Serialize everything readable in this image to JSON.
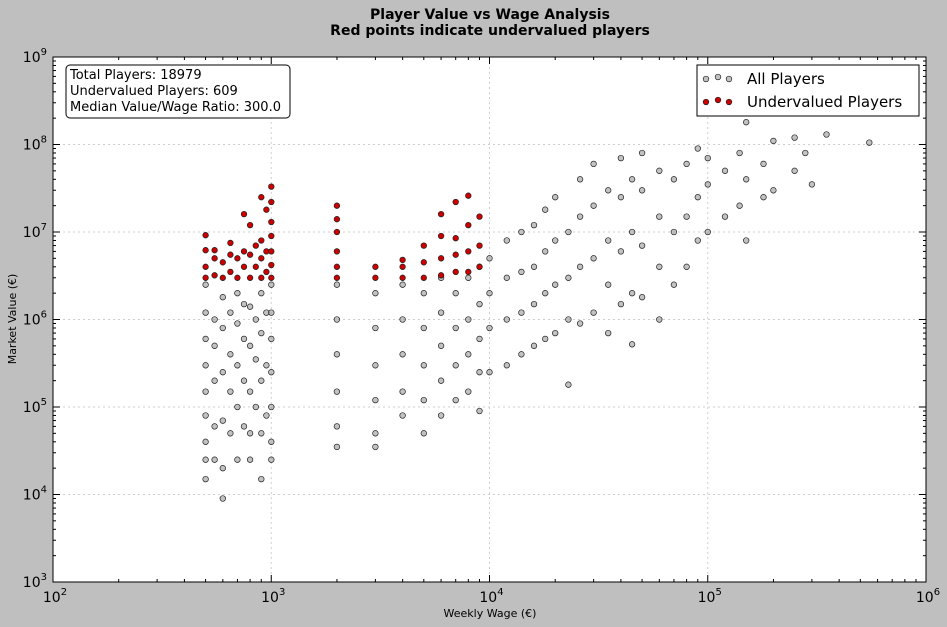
{
  "chart_data": {
    "type": "scatter",
    "title": "Player Value vs Wage Analysis",
    "subtitle": "Red points indicate undervalued players",
    "xlabel": "Weekly Wage (€)",
    "ylabel": "Market Value (€)",
    "x_scale": "log",
    "y_scale": "log",
    "xlim": [
      100,
      1000000
    ],
    "ylim": [
      1000,
      1000000000
    ],
    "x_ticks": [
      {
        "base": "10",
        "exp": "2",
        "value": 100
      },
      {
        "base": "10",
        "exp": "3",
        "value": 1000
      },
      {
        "base": "10",
        "exp": "4",
        "value": 10000
      },
      {
        "base": "10",
        "exp": "5",
        "value": 100000
      },
      {
        "base": "10",
        "exp": "6",
        "value": 1000000
      }
    ],
    "y_ticks": [
      {
        "base": "10",
        "exp": "3",
        "value": 1000
      },
      {
        "base": "10",
        "exp": "4",
        "value": 10000
      },
      {
        "base": "10",
        "exp": "5",
        "value": 100000
      },
      {
        "base": "10",
        "exp": "6",
        "value": 1000000
      },
      {
        "base": "10",
        "exp": "7",
        "value": 10000000
      },
      {
        "base": "10",
        "exp": "8",
        "value": 100000000
      },
      {
        "base": "10",
        "exp": "9",
        "value": 1000000000
      }
    ],
    "grid": true,
    "legend_position": "top-right",
    "stats": {
      "total": "Total Players: 18979",
      "undervalued": "Undervalued Players: 609",
      "median": "Median Value/Wage Ratio: 300.0"
    },
    "series": [
      {
        "name": "All Players",
        "color": "#999999",
        "points": [
          [
            500,
            15000
          ],
          [
            500,
            25000
          ],
          [
            500,
            40000
          ],
          [
            500,
            80000
          ],
          [
            500,
            150000
          ],
          [
            500,
            300000
          ],
          [
            500,
            600000
          ],
          [
            500,
            1200000
          ],
          [
            500,
            2500000
          ],
          [
            550,
            25000
          ],
          [
            550,
            60000
          ],
          [
            550,
            200000
          ],
          [
            550,
            500000
          ],
          [
            550,
            1000000
          ],
          [
            600,
            9000
          ],
          [
            600,
            20000
          ],
          [
            600,
            70000
          ],
          [
            600,
            250000
          ],
          [
            600,
            800000
          ],
          [
            600,
            1800000
          ],
          [
            650,
            50000
          ],
          [
            650,
            150000
          ],
          [
            650,
            400000
          ],
          [
            650,
            1200000
          ],
          [
            700,
            25000
          ],
          [
            700,
            100000
          ],
          [
            700,
            300000
          ],
          [
            700,
            900000
          ],
          [
            700,
            2000000
          ],
          [
            750,
            60000
          ],
          [
            750,
            200000
          ],
          [
            750,
            600000
          ],
          [
            750,
            1500000
          ],
          [
            800,
            25000
          ],
          [
            800,
            50000
          ],
          [
            800,
            150000
          ],
          [
            800,
            500000
          ],
          [
            800,
            1400000
          ],
          [
            850,
            100000
          ],
          [
            850,
            350000
          ],
          [
            850,
            1000000
          ],
          [
            900,
            15000
          ],
          [
            900,
            50000
          ],
          [
            900,
            200000
          ],
          [
            900,
            700000
          ],
          [
            900,
            2000000
          ],
          [
            950,
            80000
          ],
          [
            950,
            300000
          ],
          [
            950,
            1200000
          ],
          [
            1000,
            25000
          ],
          [
            1000,
            40000
          ],
          [
            1000,
            100000
          ],
          [
            1000,
            250000
          ],
          [
            1000,
            600000
          ],
          [
            1000,
            1200000
          ],
          [
            1000,
            2500000
          ],
          [
            2000,
            35000
          ],
          [
            2000,
            60000
          ],
          [
            2000,
            150000
          ],
          [
            2000,
            400000
          ],
          [
            2000,
            1000000
          ],
          [
            2000,
            2500000
          ],
          [
            3000,
            35000
          ],
          [
            3000,
            50000
          ],
          [
            3000,
            120000
          ],
          [
            3000,
            300000
          ],
          [
            3000,
            800000
          ],
          [
            3000,
            2000000
          ],
          [
            4000,
            80000
          ],
          [
            4000,
            150000
          ],
          [
            4000,
            400000
          ],
          [
            4000,
            1000000
          ],
          [
            4000,
            2500000
          ],
          [
            5000,
            50000
          ],
          [
            5000,
            120000
          ],
          [
            5000,
            300000
          ],
          [
            5000,
            800000
          ],
          [
            5000,
            2000000
          ],
          [
            6000,
            80000
          ],
          [
            6000,
            200000
          ],
          [
            6000,
            500000
          ],
          [
            6000,
            1200000
          ],
          [
            6000,
            3000000
          ],
          [
            7000,
            120000
          ],
          [
            7000,
            300000
          ],
          [
            7000,
            800000
          ],
          [
            7000,
            2000000
          ],
          [
            8000,
            150000
          ],
          [
            8000,
            400000
          ],
          [
            8000,
            1000000
          ],
          [
            8000,
            3000000
          ],
          [
            9000,
            90000
          ],
          [
            9000,
            250000
          ],
          [
            9000,
            600000
          ],
          [
            9000,
            1500000
          ],
          [
            9000,
            4000000
          ],
          [
            10000,
            250000
          ],
          [
            10000,
            800000
          ],
          [
            10000,
            2000000
          ],
          [
            10000,
            5000000
          ],
          [
            12000,
            300000
          ],
          [
            12000,
            1000000
          ],
          [
            12000,
            3000000
          ],
          [
            12000,
            8000000
          ],
          [
            14000,
            400000
          ],
          [
            14000,
            1200000
          ],
          [
            14000,
            3500000
          ],
          [
            14000,
            10000000
          ],
          [
            16000,
            500000
          ],
          [
            16000,
            1500000
          ],
          [
            16000,
            4000000
          ],
          [
            16000,
            12000000
          ],
          [
            18000,
            600000
          ],
          [
            18000,
            2000000
          ],
          [
            18000,
            6000000
          ],
          [
            18000,
            18000000
          ],
          [
            20000,
            700000
          ],
          [
            20000,
            2500000
          ],
          [
            20000,
            8000000
          ],
          [
            20000,
            25000000
          ],
          [
            23000,
            180000
          ],
          [
            23000,
            1000000
          ],
          [
            23000,
            3000000
          ],
          [
            23000,
            10000000
          ],
          [
            26000,
            900000
          ],
          [
            26000,
            4000000
          ],
          [
            26000,
            15000000
          ],
          [
            26000,
            40000000
          ],
          [
            30000,
            1200000
          ],
          [
            30000,
            5000000
          ],
          [
            30000,
            20000000
          ],
          [
            30000,
            60000000
          ],
          [
            35000,
            700000
          ],
          [
            35000,
            2500000
          ],
          [
            35000,
            8000000
          ],
          [
            35000,
            30000000
          ],
          [
            40000,
            1500000
          ],
          [
            40000,
            6000000
          ],
          [
            40000,
            25000000
          ],
          [
            40000,
            70000000
          ],
          [
            45000,
            520000
          ],
          [
            45000,
            2000000
          ],
          [
            45000,
            10000000
          ],
          [
            45000,
            40000000
          ],
          [
            50000,
            1800000
          ],
          [
            50000,
            7000000
          ],
          [
            50000,
            30000000
          ],
          [
            50000,
            80000000
          ],
          [
            60000,
            1000000
          ],
          [
            60000,
            4000000
          ],
          [
            60000,
            15000000
          ],
          [
            60000,
            50000000
          ],
          [
            70000,
            2500000
          ],
          [
            70000,
            10000000
          ],
          [
            70000,
            40000000
          ],
          [
            80000,
            4000000
          ],
          [
            80000,
            15000000
          ],
          [
            80000,
            60000000
          ],
          [
            90000,
            8000000
          ],
          [
            90000,
            25000000
          ],
          [
            90000,
            90000000
          ],
          [
            100000,
            10000000
          ],
          [
            100000,
            35000000
          ],
          [
            100000,
            70000000
          ],
          [
            120000,
            15000000
          ],
          [
            120000,
            50000000
          ],
          [
            140000,
            20000000
          ],
          [
            140000,
            80000000
          ],
          [
            150000,
            8000000
          ],
          [
            150000,
            40000000
          ],
          [
            150000,
            180000000
          ],
          [
            180000,
            25000000
          ],
          [
            180000,
            60000000
          ],
          [
            200000,
            30000000
          ],
          [
            200000,
            110000000
          ],
          [
            250000,
            50000000
          ],
          [
            250000,
            120000000
          ],
          [
            280000,
            80000000
          ],
          [
            300000,
            35000000
          ],
          [
            350000,
            130000000
          ],
          [
            550000,
            105000000
          ]
        ]
      },
      {
        "name": "Undervalued Players",
        "color": "#cc0000",
        "points": [
          [
            500,
            3000000
          ],
          [
            500,
            4000000
          ],
          [
            500,
            6200000
          ],
          [
            500,
            9200000
          ],
          [
            550,
            3200000
          ],
          [
            550,
            5000000
          ],
          [
            550,
            6200000
          ],
          [
            600,
            3000000
          ],
          [
            600,
            4500000
          ],
          [
            650,
            3500000
          ],
          [
            650,
            5500000
          ],
          [
            650,
            7500000
          ],
          [
            700,
            3000000
          ],
          [
            700,
            5000000
          ],
          [
            750,
            4000000
          ],
          [
            750,
            6000000
          ],
          [
            750,
            16000000
          ],
          [
            800,
            3000000
          ],
          [
            800,
            5500000
          ],
          [
            800,
            12000000
          ],
          [
            850,
            4000000
          ],
          [
            850,
            7000000
          ],
          [
            900,
            3000000
          ],
          [
            900,
            5000000
          ],
          [
            900,
            8000000
          ],
          [
            900,
            25000000
          ],
          [
            950,
            3500000
          ],
          [
            950,
            6000000
          ],
          [
            950,
            18000000
          ],
          [
            1000,
            3000000
          ],
          [
            1000,
            4200000
          ],
          [
            1000,
            6000000
          ],
          [
            1000,
            9000000
          ],
          [
            1000,
            13000000
          ],
          [
            1000,
            22000000
          ],
          [
            1000,
            33000000
          ],
          [
            2000,
            3000000
          ],
          [
            2000,
            4000000
          ],
          [
            2000,
            6000000
          ],
          [
            2000,
            10000000
          ],
          [
            2000,
            14000000
          ],
          [
            2000,
            20000000
          ],
          [
            3000,
            3000000
          ],
          [
            3000,
            4000000
          ],
          [
            4000,
            3000000
          ],
          [
            4000,
            4000000
          ],
          [
            4000,
            4800000
          ],
          [
            5000,
            3000000
          ],
          [
            5000,
            4500000
          ],
          [
            5000,
            7000000
          ],
          [
            6000,
            3200000
          ],
          [
            6000,
            5000000
          ],
          [
            6000,
            9000000
          ],
          [
            6000,
            16000000
          ],
          [
            7000,
            3500000
          ],
          [
            7000,
            5500000
          ],
          [
            7000,
            8500000
          ],
          [
            7000,
            22000000
          ],
          [
            8000,
            3500000
          ],
          [
            8000,
            6000000
          ],
          [
            8000,
            12000000
          ],
          [
            8000,
            26000000
          ],
          [
            9000,
            4000000
          ],
          [
            9000,
            7000000
          ],
          [
            9000,
            15000000
          ]
        ]
      }
    ]
  }
}
